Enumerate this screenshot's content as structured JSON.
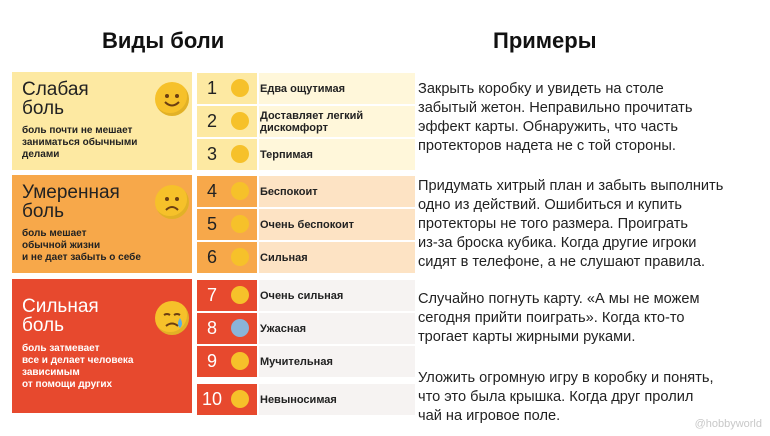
{
  "headers": {
    "left": "Виды боли",
    "right": "Примеры"
  },
  "categories": [
    {
      "title_line1": "Слабая",
      "title_line2": "боль",
      "desc_line1": "боль почти не мешает",
      "desc_line2": "заниматься обычными",
      "desc_line3": "делами",
      "desc_line4": ""
    },
    {
      "title_line1": "Умеренная",
      "title_line2": "боль",
      "desc_line1": "боль мешает",
      "desc_line2": "обычной жизни",
      "desc_line3": "и не дает забыть о себе",
      "desc_line4": ""
    },
    {
      "title_line1": "Сильная",
      "title_line2": "боль",
      "desc_line1": "боль затмевает",
      "desc_line2": "все и делает человека",
      "desc_line3": "зависимым",
      "desc_line4": "от помощи других"
    }
  ],
  "levels": [
    {
      "num": "1",
      "label": "Едва ощутимая",
      "emoji": "grinning-face"
    },
    {
      "num": "2",
      "label": "Доставляет легкий дискомфорт",
      "emoji": "smiling-face"
    },
    {
      "num": "3",
      "label": "Терпимая",
      "emoji": "smirking-face"
    },
    {
      "num": "4",
      "label": "Беспокоит",
      "emoji": "neutral-face"
    },
    {
      "num": "5",
      "label": "Очень беспокоит",
      "emoji": "worried-face"
    },
    {
      "num": "6",
      "label": "Сильная",
      "emoji": "frowning-face"
    },
    {
      "num": "7",
      "label": "Очень сильная",
      "emoji": "astonished-face"
    },
    {
      "num": "8",
      "label": "Ужасная",
      "emoji": "fearful-face"
    },
    {
      "num": "9",
      "label": "Мучительная",
      "emoji": "anguished-face"
    },
    {
      "num": "10",
      "label": "Невыносимая",
      "emoji": "crying-face"
    }
  ],
  "examples": [
    {
      "l1": "Закрыть коробку и увидеть на столе",
      "l2": "забытый жетон. Неправильно прочитать",
      "l3": "эффект карты. Обнаружить, что часть",
      "l4": "протекторов надета не с той стороны."
    },
    {
      "l1": "Придумать хитрый план и забыть выполнить",
      "l2": "одно из действий. Ошибиться и купить",
      "l3": "протекторы не того размера. Проиграть",
      "l4": "из-за броска кубика. Когда другие игроки",
      "l5": "сидят в телефоне, а не слушают правила."
    },
    {
      "l1": "Случайно погнуть карту. «А мы не можем",
      "l2": "сегодня прийти поиграть». Когда кто-то",
      "l3": "трогает карты жирными руками."
    },
    {
      "l1": "Уложить огромную игру в коробку и понять,",
      "l2": "что это была крышка. Когда друг пролил",
      "l3": "чай на игровое поле."
    }
  ],
  "watermark": "@hobbyworld",
  "colors": {
    "weak": "#fde9a2",
    "moderate": "#f7a84a",
    "strong": "#e7492e",
    "emoji": "#f6c12a"
  }
}
